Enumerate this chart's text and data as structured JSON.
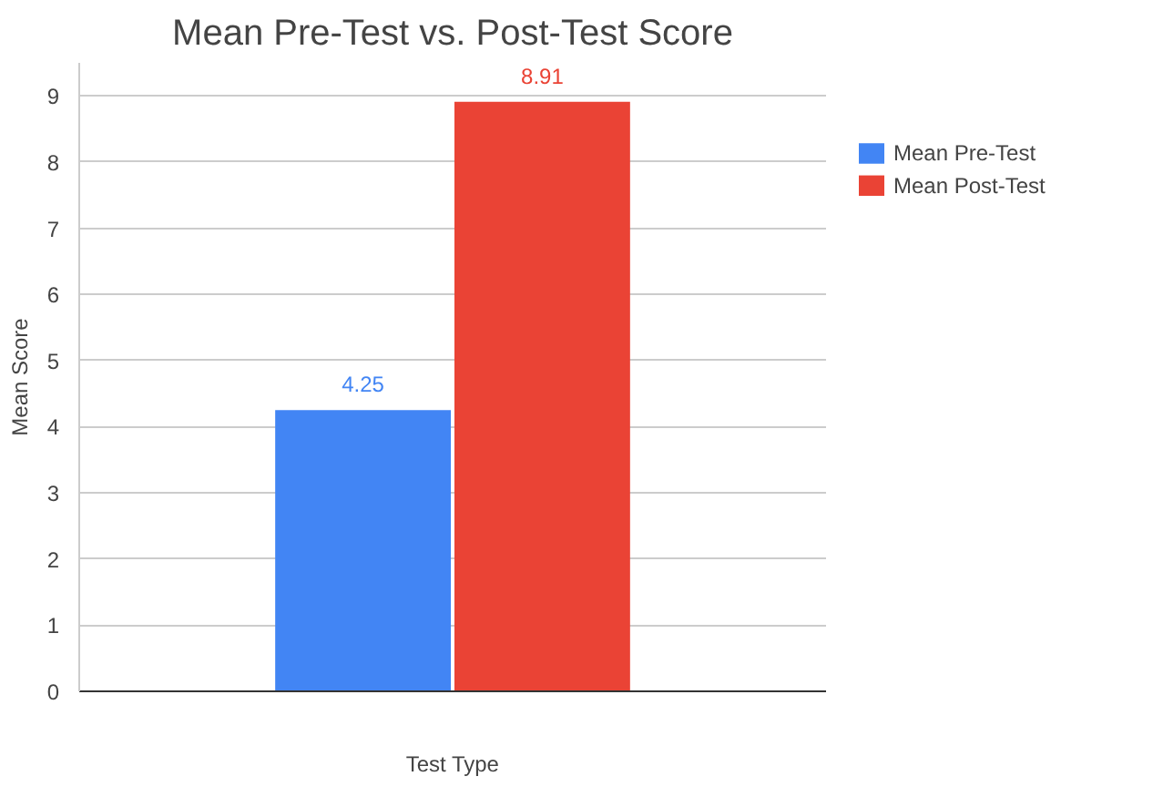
{
  "chart_data": {
    "type": "bar",
    "title": "Mean Pre-Test vs. Post-Test Score",
    "xlabel": "Test Type",
    "ylabel": "Mean Score",
    "categories": [
      null
    ],
    "series": [
      {
        "name": "Mean Pre-Test",
        "color": "#4285f4",
        "values": [
          4.25
        ]
      },
      {
        "name": "Mean Post-Test",
        "color": "#ea4335",
        "values": [
          8.91
        ]
      }
    ],
    "ylim": [
      0,
      9.5
    ],
    "yticks": [
      0,
      1,
      2,
      3,
      4,
      5,
      6,
      7,
      8,
      9
    ],
    "grid": "y",
    "legend": "top right",
    "data_labels": true
  }
}
